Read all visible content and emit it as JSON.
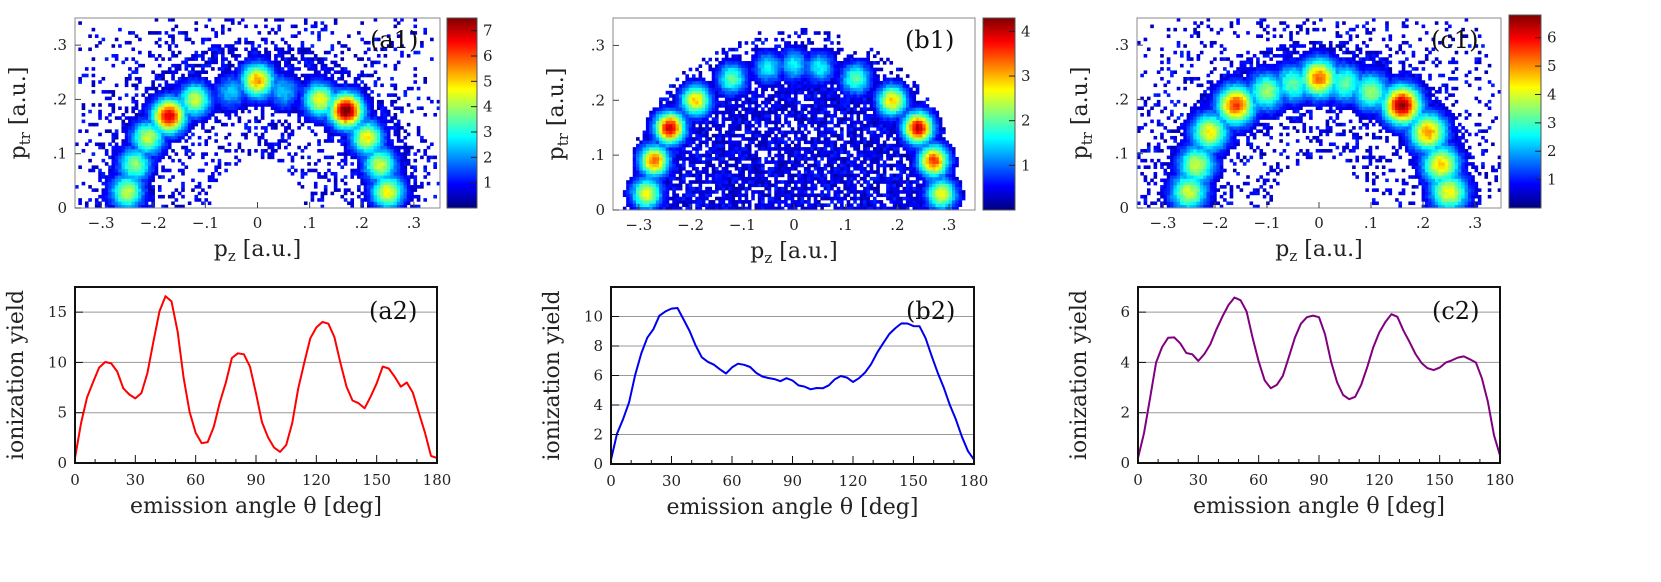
{
  "colorscale": [
    "#00007f",
    "#0000ff",
    "#007fff",
    "#00ffff",
    "#7fff7f",
    "#ffff00",
    "#ff7f00",
    "#ff0000",
    "#7f0000"
  ],
  "chart_data": [
    {
      "id": "a1",
      "type": "heatmap",
      "label": "(a1)",
      "xlabel": "p",
      "xsub": "z",
      "xunit": " [a.u.]",
      "ylabel": "p",
      "ysub": "tr",
      "yunit": " [a.u.]",
      "xlim": [
        -0.35,
        0.35
      ],
      "ylim": [
        0,
        0.35
      ],
      "xticks": [
        -0.3,
        -0.2,
        -0.1,
        0,
        0.1,
        0.2,
        0.3
      ],
      "yticks": [
        0,
        0.1,
        0.2,
        0.3
      ],
      "colorbar": {
        "min": 0,
        "max": 7.5,
        "ticks": [
          1,
          2,
          3,
          4,
          5,
          6,
          7
        ]
      },
      "ridges": [
        {
          "x": -0.25,
          "y": 0.03,
          "i": 0.55
        },
        {
          "x": -0.235,
          "y": 0.08,
          "i": 0.5
        },
        {
          "x": -0.21,
          "y": 0.13,
          "i": 0.55
        },
        {
          "x": -0.17,
          "y": 0.17,
          "i": 0.9
        },
        {
          "x": -0.12,
          "y": 0.2,
          "i": 0.55
        },
        {
          "x": -0.05,
          "y": 0.215,
          "i": 0.3
        },
        {
          "x": 0.0,
          "y": 0.235,
          "i": 0.7
        },
        {
          "x": 0.05,
          "y": 0.215,
          "i": 0.3
        },
        {
          "x": 0.12,
          "y": 0.2,
          "i": 0.6
        },
        {
          "x": 0.17,
          "y": 0.18,
          "i": 1.0
        },
        {
          "x": 0.21,
          "y": 0.13,
          "i": 0.6
        },
        {
          "x": 0.235,
          "y": 0.08,
          "i": 0.55
        },
        {
          "x": 0.25,
          "y": 0.03,
          "i": 0.6
        }
      ],
      "spread": 0.022
    },
    {
      "id": "b1",
      "type": "heatmap",
      "label": "(b1)",
      "xlabel": "p",
      "xsub": "z",
      "xunit": " [a.u.]",
      "ylabel": "p",
      "ysub": "tr",
      "yunit": " [a.u.]",
      "xlim": [
        -0.35,
        0.35
      ],
      "ylim": [
        0,
        0.35
      ],
      "xticks": [
        -0.3,
        -0.2,
        -0.1,
        0,
        0.1,
        0.2,
        0.3
      ],
      "yticks": [
        0,
        0.1,
        0.2,
        0.3
      ],
      "colorbar": {
        "min": 0,
        "max": 4.3,
        "ticks": [
          1,
          2,
          3,
          4
        ]
      },
      "ridges": [
        {
          "x": -0.285,
          "y": 0.03,
          "i": 0.6
        },
        {
          "x": -0.27,
          "y": 0.09,
          "i": 0.75
        },
        {
          "x": -0.24,
          "y": 0.15,
          "i": 0.9
        },
        {
          "x": -0.19,
          "y": 0.2,
          "i": 0.65
        },
        {
          "x": -0.12,
          "y": 0.24,
          "i": 0.45
        },
        {
          "x": -0.05,
          "y": 0.26,
          "i": 0.35
        },
        {
          "x": 0.0,
          "y": 0.265,
          "i": 0.35
        },
        {
          "x": 0.05,
          "y": 0.26,
          "i": 0.35
        },
        {
          "x": 0.12,
          "y": 0.24,
          "i": 0.45
        },
        {
          "x": 0.19,
          "y": 0.2,
          "i": 0.65
        },
        {
          "x": 0.24,
          "y": 0.15,
          "i": 0.9
        },
        {
          "x": 0.27,
          "y": 0.09,
          "i": 0.8
        },
        {
          "x": 0.285,
          "y": 0.03,
          "i": 0.6
        }
      ],
      "spread": 0.02
    },
    {
      "id": "c1",
      "type": "heatmap",
      "label": "(c1)",
      "xlabel": "p",
      "xsub": "z",
      "xunit": " [a.u.]",
      "ylabel": "p",
      "ysub": "tr",
      "yunit": " [a.u.]",
      "xlim": [
        -0.35,
        0.35
      ],
      "ylim": [
        0,
        0.35
      ],
      "xticks": [
        -0.3,
        -0.2,
        -0.1,
        0,
        0.1,
        0.2,
        0.3
      ],
      "yticks": [
        0,
        0.1,
        0.2,
        0.3
      ],
      "colorbar": {
        "min": 0,
        "max": 6.8,
        "ticks": [
          1,
          2,
          3,
          4,
          5,
          6
        ]
      },
      "ridges": [
        {
          "x": -0.25,
          "y": 0.03,
          "i": 0.55
        },
        {
          "x": -0.235,
          "y": 0.08,
          "i": 0.55
        },
        {
          "x": -0.21,
          "y": 0.14,
          "i": 0.6
        },
        {
          "x": -0.16,
          "y": 0.19,
          "i": 0.8
        },
        {
          "x": -0.1,
          "y": 0.215,
          "i": 0.5
        },
        {
          "x": -0.05,
          "y": 0.23,
          "i": 0.45
        },
        {
          "x": 0.0,
          "y": 0.24,
          "i": 0.75
        },
        {
          "x": 0.05,
          "y": 0.23,
          "i": 0.45
        },
        {
          "x": 0.1,
          "y": 0.215,
          "i": 0.5
        },
        {
          "x": 0.16,
          "y": 0.19,
          "i": 0.95
        },
        {
          "x": 0.21,
          "y": 0.14,
          "i": 0.7
        },
        {
          "x": 0.235,
          "y": 0.08,
          "i": 0.65
        },
        {
          "x": 0.25,
          "y": 0.03,
          "i": 0.6
        }
      ],
      "spread": 0.025
    },
    {
      "id": "a2",
      "type": "line",
      "label": "(a2)",
      "color": "#ff0000",
      "xlabel": "emission angle θ [deg]",
      "ylabel": "ionization yield",
      "xlim": [
        0,
        180
      ],
      "ylim": [
        0,
        17.5
      ],
      "xticks": [
        0,
        30,
        60,
        90,
        120,
        150,
        180
      ],
      "yticks": [
        0,
        5,
        10,
        15
      ],
      "grid": true,
      "x": [
        0,
        3,
        6,
        9,
        12,
        15,
        18,
        21,
        24,
        27,
        30,
        33,
        36,
        39,
        42,
        45,
        48,
        51,
        54,
        57,
        60,
        63,
        66,
        69,
        72,
        75,
        78,
        81,
        84,
        87,
        90,
        93,
        96,
        99,
        102,
        105,
        108,
        111,
        114,
        117,
        120,
        123,
        126,
        129,
        132,
        135,
        138,
        141,
        144,
        147,
        150,
        153,
        156,
        159,
        162,
        165,
        168,
        171,
        174,
        177,
        180
      ],
      "values": [
        0.5,
        4.0,
        6.5,
        8.0,
        9.5,
        10.0,
        10.0,
        9.0,
        7.5,
        6.8,
        6.5,
        7.0,
        9.0,
        12.0,
        15.0,
        16.5,
        16.0,
        13.0,
        8.5,
        5.0,
        3.0,
        2.0,
        2.0,
        3.5,
        6.0,
        8.0,
        10.5,
        11.0,
        10.8,
        9.5,
        7.0,
        4.0,
        2.5,
        1.5,
        1.2,
        1.8,
        4.0,
        7.5,
        10.0,
        12.5,
        13.5,
        14.0,
        13.8,
        12.5,
        10.0,
        7.5,
        6.2,
        6.0,
        5.5,
        6.5,
        8.0,
        9.5,
        9.5,
        8.5,
        7.5,
        8.0,
        7.0,
        5.0,
        3.0,
        0.8,
        0.5
      ]
    },
    {
      "id": "b2",
      "type": "line",
      "label": "(b2)",
      "color": "#0000ee",
      "xlabel": "emission angle θ [deg]",
      "ylabel": "ionization yield",
      "xlim": [
        0,
        180
      ],
      "ylim": [
        0,
        12
      ],
      "xticks": [
        0,
        30,
        60,
        90,
        120,
        150,
        180
      ],
      "yticks": [
        0,
        2,
        4,
        6,
        8,
        10
      ],
      "grid": true,
      "x": [
        0,
        3,
        6,
        9,
        12,
        15,
        18,
        21,
        24,
        27,
        30,
        33,
        36,
        39,
        42,
        45,
        48,
        51,
        54,
        57,
        60,
        63,
        66,
        69,
        72,
        75,
        78,
        81,
        84,
        87,
        90,
        93,
        96,
        99,
        102,
        105,
        108,
        111,
        114,
        117,
        120,
        123,
        126,
        129,
        132,
        135,
        138,
        141,
        144,
        147,
        150,
        153,
        156,
        159,
        162,
        165,
        168,
        171,
        174,
        177,
        180
      ],
      "values": [
        0.3,
        2.0,
        3.0,
        4.2,
        6.0,
        7.5,
        8.5,
        9.2,
        10.0,
        10.3,
        10.5,
        10.6,
        9.8,
        9.0,
        8.0,
        7.3,
        7.0,
        6.8,
        6.4,
        6.2,
        6.5,
        6.8,
        6.7,
        6.6,
        6.2,
        6.0,
        5.9,
        5.7,
        5.6,
        5.8,
        5.7,
        5.4,
        5.2,
        5.0,
        5.1,
        5.2,
        5.4,
        5.7,
        6.0,
        5.8,
        5.5,
        5.8,
        6.2,
        6.8,
        7.5,
        8.2,
        8.8,
        9.2,
        9.5,
        9.5,
        9.4,
        9.3,
        8.5,
        7.3,
        6.2,
        5.2,
        4.0,
        3.0,
        1.8,
        0.9,
        0.3
      ]
    },
    {
      "id": "c2",
      "type": "line",
      "label": "(c2)",
      "color": "#800080",
      "xlabel": "emission angle θ [deg]",
      "ylabel": "ionization yield",
      "xlim": [
        0,
        180
      ],
      "ylim": [
        0,
        7
      ],
      "xticks": [
        0,
        30,
        60,
        90,
        120,
        150,
        180
      ],
      "yticks": [
        0,
        2,
        4,
        6
      ],
      "grid": true,
      "x": [
        0,
        3,
        6,
        9,
        12,
        15,
        18,
        21,
        24,
        27,
        30,
        33,
        36,
        39,
        42,
        45,
        48,
        51,
        54,
        57,
        60,
        63,
        66,
        69,
        72,
        75,
        78,
        81,
        84,
        87,
        90,
        93,
        96,
        99,
        102,
        105,
        108,
        111,
        114,
        117,
        120,
        123,
        126,
        129,
        132,
        135,
        138,
        141,
        144,
        147,
        150,
        153,
        156,
        159,
        162,
        165,
        168,
        171,
        174,
        177,
        180
      ],
      "values": [
        0.2,
        1.2,
        2.6,
        4.0,
        4.6,
        5.0,
        5.0,
        4.8,
        4.4,
        4.3,
        4.1,
        4.3,
        4.7,
        5.3,
        5.8,
        6.3,
        6.6,
        6.5,
        6.0,
        5.0,
        4.0,
        3.3,
        3.0,
        3.1,
        3.5,
        4.2,
        5.0,
        5.5,
        5.8,
        5.9,
        5.8,
        5.1,
        4.0,
        3.2,
        2.7,
        2.5,
        2.6,
        3.1,
        3.8,
        4.6,
        5.2,
        5.6,
        5.9,
        5.8,
        5.3,
        4.8,
        4.3,
        4.0,
        3.8,
        3.7,
        3.8,
        4.0,
        4.1,
        4.2,
        4.2,
        4.1,
        4.0,
        3.4,
        2.4,
        1.1,
        0.3
      ]
    }
  ]
}
